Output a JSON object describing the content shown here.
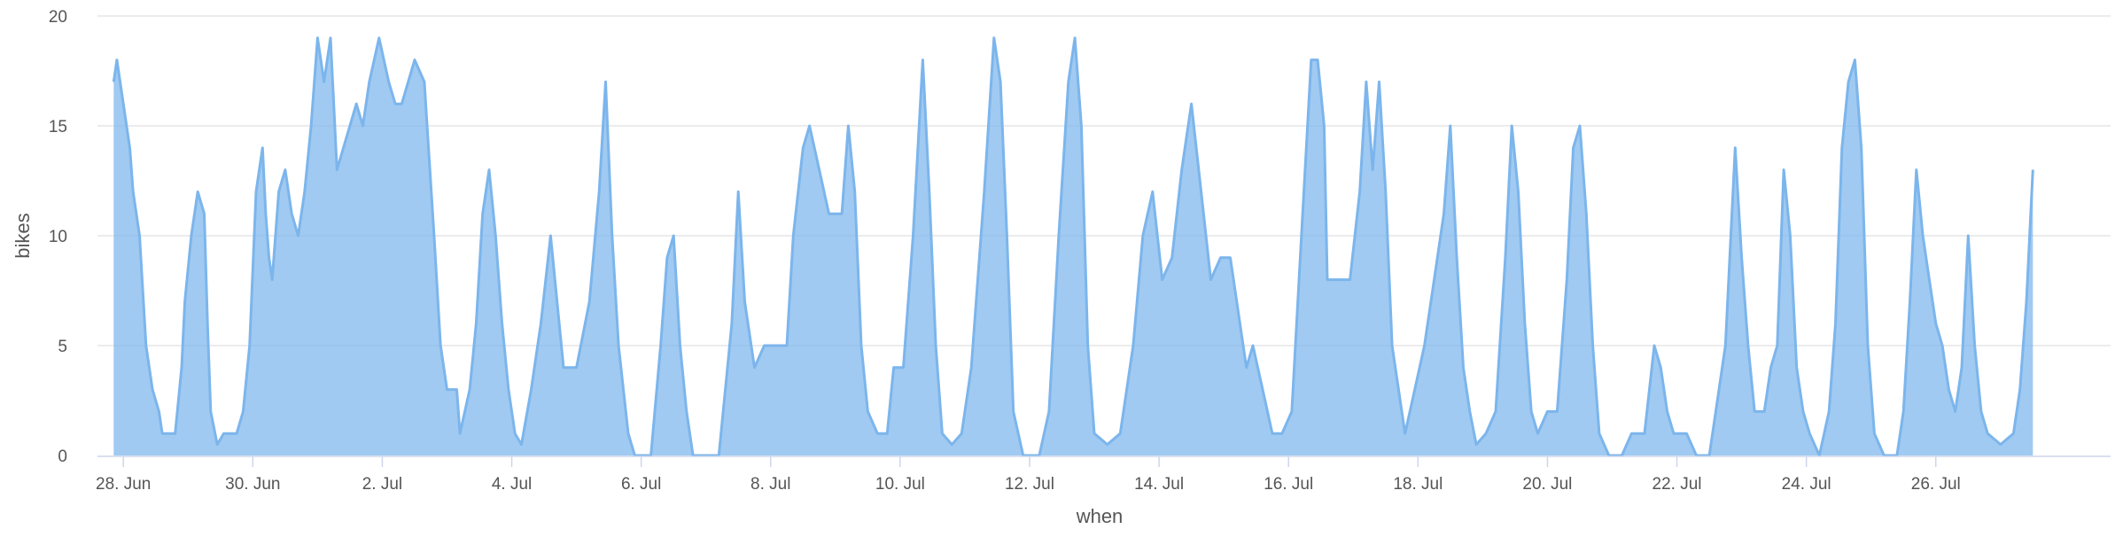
{
  "chart_data": {
    "type": "area",
    "title": "",
    "xlabel": "when",
    "ylabel": "bikes",
    "ylim": [
      0,
      20
    ],
    "xlim_days": [
      27.6,
      58.7
    ],
    "yticks": [
      0,
      5,
      10,
      15,
      20
    ],
    "xticks": [
      {
        "day": 28,
        "label": "28. Jun"
      },
      {
        "day": 30,
        "label": "30. Jun"
      },
      {
        "day": 32,
        "label": "2. Jul"
      },
      {
        "day": 34,
        "label": "4. Jul"
      },
      {
        "day": 36,
        "label": "6. Jul"
      },
      {
        "day": 38,
        "label": "8. Jul"
      },
      {
        "day": 40,
        "label": "10. Jul"
      },
      {
        "day": 42,
        "label": "12. Jul"
      },
      {
        "day": 44,
        "label": "14. Jul"
      },
      {
        "day": 46,
        "label": "16. Jul"
      },
      {
        "day": 48,
        "label": "18. Jul"
      },
      {
        "day": 50,
        "label": "20. Jul"
      },
      {
        "day": 52,
        "label": "22. Jul"
      },
      {
        "day": 54,
        "label": "24. Jul"
      },
      {
        "day": 56,
        "label": "26. Jul"
      }
    ],
    "grid": true,
    "legend": "none",
    "series": [
      {
        "name": "",
        "color": "#7cb5ec",
        "points": [
          [
            27.85,
            17
          ],
          [
            27.9,
            18
          ],
          [
            28.0,
            16
          ],
          [
            28.1,
            14
          ],
          [
            28.15,
            12
          ],
          [
            28.25,
            10
          ],
          [
            28.35,
            5
          ],
          [
            28.45,
            3
          ],
          [
            28.55,
            2
          ],
          [
            28.6,
            1
          ],
          [
            28.8,
            1
          ],
          [
            28.9,
            4
          ],
          [
            28.95,
            7
          ],
          [
            29.05,
            10
          ],
          [
            29.15,
            12
          ],
          [
            29.25,
            11
          ],
          [
            29.3,
            6
          ],
          [
            29.35,
            2
          ],
          [
            29.45,
            0.5
          ],
          [
            29.55,
            1
          ],
          [
            29.75,
            1
          ],
          [
            29.85,
            2
          ],
          [
            29.95,
            5
          ],
          [
            30.05,
            12
          ],
          [
            30.15,
            14
          ],
          [
            30.2,
            11
          ],
          [
            30.25,
            9
          ],
          [
            30.3,
            8
          ],
          [
            30.4,
            12
          ],
          [
            30.5,
            13
          ],
          [
            30.6,
            11
          ],
          [
            30.7,
            10
          ],
          [
            30.8,
            12
          ],
          [
            30.9,
            15
          ],
          [
            31.0,
            19
          ],
          [
            31.1,
            17
          ],
          [
            31.2,
            19
          ],
          [
            31.3,
            13
          ],
          [
            31.4,
            14
          ],
          [
            31.6,
            16
          ],
          [
            31.7,
            15
          ],
          [
            31.8,
            17
          ],
          [
            31.95,
            19
          ],
          [
            32.1,
            17
          ],
          [
            32.2,
            16
          ],
          [
            32.3,
            16
          ],
          [
            32.5,
            18
          ],
          [
            32.65,
            17
          ],
          [
            32.8,
            10
          ],
          [
            32.9,
            5
          ],
          [
            33.0,
            3
          ],
          [
            33.15,
            3
          ],
          [
            33.2,
            1
          ],
          [
            33.35,
            3
          ],
          [
            33.45,
            6
          ],
          [
            33.55,
            11
          ],
          [
            33.65,
            13
          ],
          [
            33.75,
            10
          ],
          [
            33.85,
            6
          ],
          [
            33.95,
            3
          ],
          [
            34.05,
            1
          ],
          [
            34.15,
            0.5
          ],
          [
            34.3,
            3
          ],
          [
            34.45,
            6
          ],
          [
            34.6,
            10
          ],
          [
            34.7,
            7
          ],
          [
            34.8,
            4
          ],
          [
            35.0,
            4
          ],
          [
            35.2,
            7
          ],
          [
            35.35,
            12
          ],
          [
            35.45,
            17
          ],
          [
            35.55,
            10
          ],
          [
            35.65,
            5
          ],
          [
            35.8,
            1
          ],
          [
            35.9,
            0
          ],
          [
            36.15,
            0
          ],
          [
            36.3,
            5
          ],
          [
            36.4,
            9
          ],
          [
            36.5,
            10
          ],
          [
            36.6,
            5
          ],
          [
            36.7,
            2
          ],
          [
            36.8,
            0
          ],
          [
            37.2,
            0
          ],
          [
            37.4,
            6
          ],
          [
            37.5,
            12
          ],
          [
            37.6,
            7
          ],
          [
            37.75,
            4
          ],
          [
            37.9,
            5
          ],
          [
            38.1,
            5
          ],
          [
            38.25,
            5
          ],
          [
            38.35,
            10
          ],
          [
            38.5,
            14
          ],
          [
            38.6,
            15
          ],
          [
            38.75,
            13
          ],
          [
            38.9,
            11
          ],
          [
            39.1,
            11
          ],
          [
            39.2,
            15
          ],
          [
            39.3,
            12
          ],
          [
            39.4,
            5
          ],
          [
            39.5,
            2
          ],
          [
            39.65,
            1
          ],
          [
            39.8,
            1
          ],
          [
            39.9,
            4
          ],
          [
            40.05,
            4
          ],
          [
            40.2,
            10
          ],
          [
            40.35,
            18
          ],
          [
            40.45,
            12
          ],
          [
            40.55,
            5
          ],
          [
            40.65,
            1
          ],
          [
            40.8,
            0.5
          ],
          [
            40.95,
            1
          ],
          [
            41.1,
            4
          ],
          [
            41.3,
            12
          ],
          [
            41.45,
            19
          ],
          [
            41.55,
            17
          ],
          [
            41.65,
            10
          ],
          [
            41.75,
            2
          ],
          [
            41.9,
            0
          ],
          [
            42.15,
            0
          ],
          [
            42.3,
            2
          ],
          [
            42.45,
            10
          ],
          [
            42.6,
            17
          ],
          [
            42.7,
            19
          ],
          [
            42.8,
            15
          ],
          [
            42.9,
            5
          ],
          [
            43.0,
            1
          ],
          [
            43.2,
            0.5
          ],
          [
            43.4,
            1
          ],
          [
            43.6,
            5
          ],
          [
            43.75,
            10
          ],
          [
            43.9,
            12
          ],
          [
            44.05,
            8
          ],
          [
            44.2,
            9
          ],
          [
            44.35,
            13
          ],
          [
            44.5,
            16
          ],
          [
            44.65,
            12
          ],
          [
            44.8,
            8
          ],
          [
            44.95,
            9
          ],
          [
            45.1,
            9
          ],
          [
            45.25,
            6
          ],
          [
            45.35,
            4
          ],
          [
            45.45,
            5
          ],
          [
            45.6,
            3
          ],
          [
            45.75,
            1
          ],
          [
            45.9,
            1
          ],
          [
            46.05,
            2
          ],
          [
            46.2,
            10
          ],
          [
            46.35,
            18
          ],
          [
            46.45,
            18
          ],
          [
            46.55,
            15
          ],
          [
            46.6,
            8
          ],
          [
            46.75,
            8
          ],
          [
            46.95,
            8
          ],
          [
            47.1,
            12
          ],
          [
            47.2,
            17
          ],
          [
            47.3,
            13
          ],
          [
            47.4,
            17
          ],
          [
            47.5,
            12
          ],
          [
            47.6,
            5
          ],
          [
            47.7,
            3
          ],
          [
            47.8,
            1
          ],
          [
            47.95,
            3
          ],
          [
            48.1,
            5
          ],
          [
            48.25,
            8
          ],
          [
            48.4,
            11
          ],
          [
            48.5,
            15
          ],
          [
            48.6,
            9
          ],
          [
            48.7,
            4
          ],
          [
            48.8,
            2
          ],
          [
            48.9,
            0.5
          ],
          [
            49.05,
            1
          ],
          [
            49.2,
            2
          ],
          [
            49.35,
            9
          ],
          [
            49.45,
            15
          ],
          [
            49.55,
            12
          ],
          [
            49.65,
            6
          ],
          [
            49.75,
            2
          ],
          [
            49.85,
            1
          ],
          [
            50.0,
            2
          ],
          [
            50.15,
            2
          ],
          [
            50.3,
            8
          ],
          [
            50.4,
            14
          ],
          [
            50.5,
            15
          ],
          [
            50.6,
            11
          ],
          [
            50.7,
            5
          ],
          [
            50.8,
            1
          ],
          [
            50.95,
            0
          ],
          [
            51.15,
            0
          ],
          [
            51.3,
            1
          ],
          [
            51.5,
            1
          ],
          [
            51.65,
            5
          ],
          [
            51.75,
            4
          ],
          [
            51.85,
            2
          ],
          [
            51.95,
            1
          ],
          [
            52.15,
            1
          ],
          [
            52.3,
            0
          ],
          [
            52.5,
            0
          ],
          [
            52.6,
            2
          ],
          [
            52.75,
            5
          ],
          [
            52.9,
            14
          ],
          [
            53.0,
            9
          ],
          [
            53.1,
            5
          ],
          [
            53.2,
            2
          ],
          [
            53.35,
            2
          ],
          [
            53.45,
            4
          ],
          [
            53.55,
            5
          ],
          [
            53.65,
            13
          ],
          [
            53.75,
            10
          ],
          [
            53.85,
            4
          ],
          [
            53.95,
            2
          ],
          [
            54.05,
            1
          ],
          [
            54.2,
            0
          ],
          [
            54.35,
            2
          ],
          [
            54.45,
            6
          ],
          [
            54.55,
            14
          ],
          [
            54.65,
            17
          ],
          [
            54.75,
            18
          ],
          [
            54.85,
            14
          ],
          [
            54.95,
            5
          ],
          [
            55.05,
            1
          ],
          [
            55.2,
            0
          ],
          [
            55.4,
            0
          ],
          [
            55.5,
            2
          ],
          [
            55.6,
            7
          ],
          [
            55.7,
            13
          ],
          [
            55.8,
            10
          ],
          [
            55.9,
            8
          ],
          [
            56.0,
            6
          ],
          [
            56.1,
            5
          ],
          [
            56.2,
            3
          ],
          [
            56.3,
            2
          ],
          [
            56.4,
            4
          ],
          [
            56.5,
            10
          ],
          [
            56.6,
            5
          ],
          [
            56.7,
            2
          ],
          [
            56.8,
            1
          ],
          [
            57.0,
            0.5
          ],
          [
            57.2,
            1
          ],
          [
            57.3,
            3
          ],
          [
            57.4,
            7
          ],
          [
            57.5,
            13
          ]
        ]
      }
    ]
  }
}
